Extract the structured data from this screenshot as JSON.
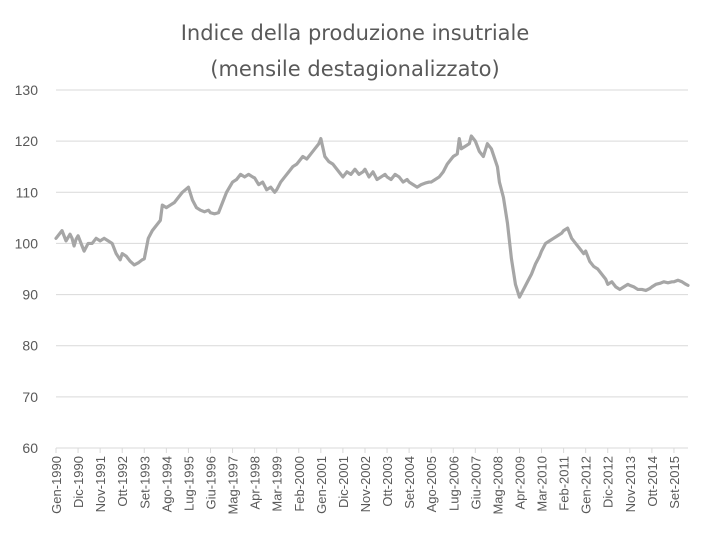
{
  "chart_data": {
    "type": "line",
    "title_line1": "Indice della produzione insutriale",
    "title_line2": "(mensile destagionalizzato)",
    "xlabel": "",
    "ylabel": "",
    "ylim": [
      60,
      130
    ],
    "yticks": [
      60,
      70,
      80,
      90,
      100,
      110,
      120,
      130
    ],
    "grid": true,
    "legend": "none",
    "series_color": "#a6a6a6",
    "x_start": "Gen-1990",
    "x_end": "Apr-2016",
    "x_ticks": [
      "Gen-1990",
      "Dic-1990",
      "Nov-1991",
      "Ott-1992",
      "Set-1993",
      "Ago-1994",
      "Lug-1995",
      "Giu-1996",
      "Mag-1997",
      "Apr-1998",
      "Mar-1999",
      "Feb-2000",
      "Gen-2001",
      "Dic-2001",
      "Nov-2002",
      "Ott-2003",
      "Set-2004",
      "Ago-2005",
      "Lug-2006",
      "Giu-2007",
      "Mag-2008",
      "Apr-2009",
      "Mar-2010",
      "Feb-2011",
      "Gen-2012",
      "Dic-2012",
      "Nov-2013",
      "Ott-2014",
      "Set-2015"
    ],
    "series": [
      {
        "points": [
          [
            "Gen-1990",
            101.0
          ],
          [
            "Apr-1990",
            102.5
          ],
          [
            "Giu-1990",
            100.5
          ],
          [
            "Ago-1990",
            101.8
          ],
          [
            "Set-1990",
            101.0
          ],
          [
            "Ott-1990",
            99.5
          ],
          [
            "Nov-1990",
            100.8
          ],
          [
            "Dic-1990",
            101.5
          ],
          [
            "Gen-1991",
            100.5
          ],
          [
            "Feb-1991",
            99.5
          ],
          [
            "Mar-1991",
            98.5
          ],
          [
            "Mag-1991",
            100.0
          ],
          [
            "Lug-1991",
            100.0
          ],
          [
            "Set-1991",
            101.0
          ],
          [
            "Nov-1991",
            100.5
          ],
          [
            "Gen-1992",
            101.0
          ],
          [
            "Mar-1992",
            100.5
          ],
          [
            "Mag-1992",
            100.0
          ],
          [
            "Lug-1992",
            98.0
          ],
          [
            "Set-1992",
            96.8
          ],
          [
            "Ott-1992",
            98.0
          ],
          [
            "Dic-1992",
            97.5
          ],
          [
            "Feb-1993",
            96.5
          ],
          [
            "Apr-1993",
            95.8
          ],
          [
            "Giu-1993",
            96.2
          ],
          [
            "Ago-1993",
            96.8
          ],
          [
            "Set-1993",
            97.0
          ],
          [
            "Nov-1993",
            101.0
          ],
          [
            "Gen-1994",
            102.5
          ],
          [
            "Mar-1994",
            103.5
          ],
          [
            "Mag-1994",
            104.5
          ],
          [
            "Giu-1994",
            107.5
          ],
          [
            "Ago-1994",
            107.0
          ],
          [
            "Ott-1994",
            107.5
          ],
          [
            "Dic-1994",
            108.0
          ],
          [
            "Feb-1995",
            109.0
          ],
          [
            "Apr-1995",
            110.0
          ],
          [
            "Lug-1995",
            111.0
          ],
          [
            "Set-1995",
            108.5
          ],
          [
            "Nov-1995",
            107.0
          ],
          [
            "Gen-1996",
            106.5
          ],
          [
            "Mar-1996",
            106.2
          ],
          [
            "Mag-1996",
            106.5
          ],
          [
            "Giu-1996",
            106.0
          ],
          [
            "Ago-1996",
            105.8
          ],
          [
            "Ott-1996",
            106.0
          ],
          [
            "Dic-1996",
            108.0
          ],
          [
            "Feb-1997",
            110.0
          ],
          [
            "Mag-1997",
            112.0
          ],
          [
            "Lug-1997",
            112.5
          ],
          [
            "Set-1997",
            113.5
          ],
          [
            "Nov-1997",
            113.0
          ],
          [
            "Gen-1998",
            113.5
          ],
          [
            "Mar-1998",
            113.0
          ],
          [
            "Apr-1998",
            112.8
          ],
          [
            "Giu-1998",
            111.5
          ],
          [
            "Ago-1998",
            112.0
          ],
          [
            "Ott-1998",
            110.5
          ],
          [
            "Dic-1998",
            111.0
          ],
          [
            "Feb-1999",
            110.0
          ],
          [
            "Mar-1999",
            110.5
          ],
          [
            "Mag-1999",
            112.0
          ],
          [
            "Lug-1999",
            113.0
          ],
          [
            "Set-1999",
            114.0
          ],
          [
            "Nov-1999",
            115.0
          ],
          [
            "Gen-2000",
            115.5
          ],
          [
            "Feb-2000",
            116.0
          ],
          [
            "Apr-2000",
            117.0
          ],
          [
            "Giu-2000",
            116.5
          ],
          [
            "Ago-2000",
            117.5
          ],
          [
            "Ott-2000",
            118.5
          ],
          [
            "Dic-2000",
            119.5
          ],
          [
            "Gen-2001",
            120.5
          ],
          [
            "Mar-2001",
            117.0
          ],
          [
            "Mag-2001",
            116.0
          ],
          [
            "Lug-2001",
            115.5
          ],
          [
            "Set-2001",
            114.5
          ],
          [
            "Nov-2001",
            113.5
          ],
          [
            "Dic-2001",
            113.0
          ],
          [
            "Feb-2002",
            114.0
          ],
          [
            "Apr-2002",
            113.5
          ],
          [
            "Giu-2002",
            114.5
          ],
          [
            "Ago-2002",
            113.5
          ],
          [
            "Ott-2002",
            114.0
          ],
          [
            "Nov-2002",
            114.5
          ],
          [
            "Gen-2003",
            113.0
          ],
          [
            "Mar-2003",
            114.0
          ],
          [
            "Mag-2003",
            112.5
          ],
          [
            "Lug-2003",
            113.0
          ],
          [
            "Set-2003",
            113.5
          ],
          [
            "Ott-2003",
            113.0
          ],
          [
            "Dic-2003",
            112.5
          ],
          [
            "Feb-2004",
            113.5
          ],
          [
            "Apr-2004",
            113.0
          ],
          [
            "Giu-2004",
            112.0
          ],
          [
            "Ago-2004",
            112.5
          ],
          [
            "Set-2004",
            112.0
          ],
          [
            "Nov-2004",
            111.5
          ],
          [
            "Gen-2005",
            111.0
          ],
          [
            "Mar-2005",
            111.5
          ],
          [
            "Mag-2005",
            111.8
          ],
          [
            "Lug-2005",
            112.0
          ],
          [
            "Ago-2005",
            112.0
          ],
          [
            "Ott-2005",
            112.5
          ],
          [
            "Dic-2005",
            113.0
          ],
          [
            "Feb-2006",
            114.0
          ],
          [
            "Apr-2006",
            115.5
          ],
          [
            "Giu-2006",
            116.5
          ],
          [
            "Lug-2006",
            117.0
          ],
          [
            "Set-2006",
            117.5
          ],
          [
            "Ott-2006",
            120.5
          ],
          [
            "Nov-2006",
            118.5
          ],
          [
            "Gen-2007",
            119.0
          ],
          [
            "Mar-2007",
            119.5
          ],
          [
            "Apr-2007",
            121.0
          ],
          [
            "Giu-2007",
            120.0
          ],
          [
            "Ago-2007",
            118.0
          ],
          [
            "Ott-2007",
            117.0
          ],
          [
            "Dic-2007",
            119.5
          ],
          [
            "Feb-2008",
            118.5
          ],
          [
            "Mag-2008",
            115.0
          ],
          [
            "Giu-2008",
            112.0
          ],
          [
            "Ago-2008",
            109.0
          ],
          [
            "Ott-2008",
            104.0
          ],
          [
            "Dic-2008",
            97.0
          ],
          [
            "Feb-2009",
            92.0
          ],
          [
            "Apr-2009",
            89.5
          ],
          [
            "Giu-2009",
            91.0
          ],
          [
            "Ago-2009",
            92.5
          ],
          [
            "Ott-2009",
            94.0
          ],
          [
            "Dic-2009",
            96.0
          ],
          [
            "Feb-2010",
            97.5
          ],
          [
            "Mar-2010",
            98.5
          ],
          [
            "Mag-2010",
            100.0
          ],
          [
            "Lug-2010",
            100.5
          ],
          [
            "Set-2010",
            101.0
          ],
          [
            "Nov-2010",
            101.5
          ],
          [
            "Gen-2011",
            102.0
          ],
          [
            "Feb-2011",
            102.5
          ],
          [
            "Apr-2011",
            103.0
          ],
          [
            "Giu-2011",
            101.0
          ],
          [
            "Ago-2011",
            100.0
          ],
          [
            "Ott-2011",
            99.0
          ],
          [
            "Dic-2011",
            98.0
          ],
          [
            "Gen-2012",
            98.5
          ],
          [
            "Mar-2012",
            96.5
          ],
          [
            "Mag-2012",
            95.5
          ],
          [
            "Lug-2012",
            95.0
          ],
          [
            "Set-2012",
            94.0
          ],
          [
            "Nov-2012",
            93.0
          ],
          [
            "Dic-2012",
            92.0
          ],
          [
            "Feb-2013",
            92.5
          ],
          [
            "Apr-2013",
            91.5
          ],
          [
            "Giu-2013",
            91.0
          ],
          [
            "Ago-2013",
            91.5
          ],
          [
            "Ott-2013",
            92.0
          ],
          [
            "Nov-2013",
            91.8
          ],
          [
            "Gen-2014",
            91.5
          ],
          [
            "Mar-2014",
            91.0
          ],
          [
            "Mag-2014",
            91.0
          ],
          [
            "Lug-2014",
            90.8
          ],
          [
            "Set-2014",
            91.2
          ],
          [
            "Ott-2014",
            91.5
          ],
          [
            "Dic-2014",
            92.0
          ],
          [
            "Feb-2015",
            92.2
          ],
          [
            "Apr-2015",
            92.5
          ],
          [
            "Giu-2015",
            92.3
          ],
          [
            "Ago-2015",
            92.5
          ],
          [
            "Set-2015",
            92.5
          ],
          [
            "Nov-2015",
            92.8
          ],
          [
            "Gen-2016",
            92.5
          ],
          [
            "Mar-2016",
            92.0
          ],
          [
            "Apr-2016",
            91.8
          ]
        ]
      }
    ]
  }
}
